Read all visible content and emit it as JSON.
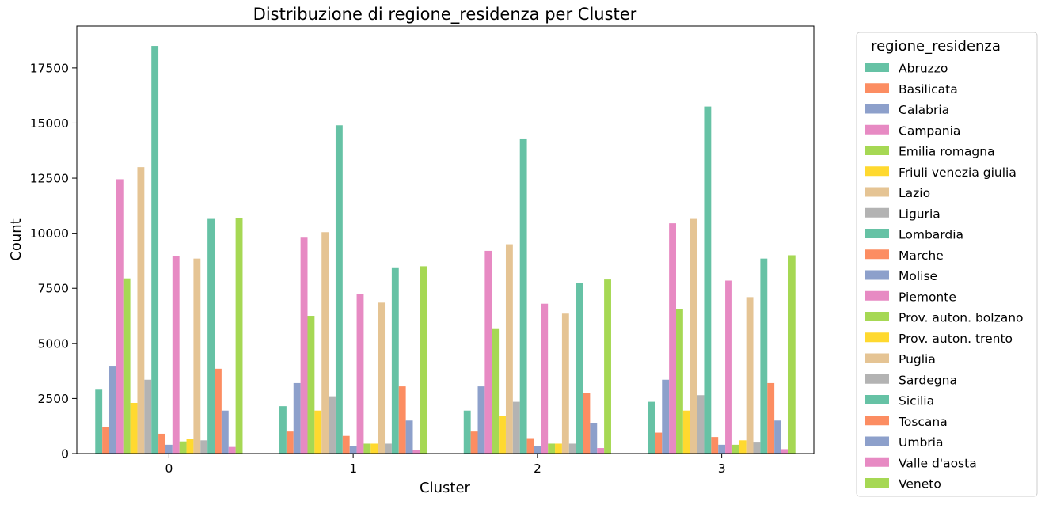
{
  "chart_data": {
    "type": "bar",
    "title": "Distribuzione di regione_residenza per Cluster",
    "xlabel": "Cluster",
    "ylabel": "Count",
    "categories": [
      "0",
      "1",
      "2",
      "3"
    ],
    "ylim": [
      0,
      19400
    ],
    "yticks": [
      0,
      2500,
      5000,
      7500,
      10000,
      12500,
      15000,
      17500
    ],
    "legend_title": "regione_residenza",
    "legend_position": "outside-right",
    "series": [
      {
        "name": "Abruzzo",
        "color": "#66c2a5",
        "values": [
          2900,
          2150,
          1950,
          2350
        ]
      },
      {
        "name": "Basilicata",
        "color": "#fc8d62",
        "values": [
          1200,
          1000,
          1000,
          950
        ]
      },
      {
        "name": "Calabria",
        "color": "#8da0cb",
        "values": [
          3950,
          3200,
          3050,
          3350
        ]
      },
      {
        "name": "Campania",
        "color": "#e78ac3",
        "values": [
          12450,
          9800,
          9200,
          10450
        ]
      },
      {
        "name": "Emilia romagna",
        "color": "#a6d854",
        "values": [
          7950,
          6250,
          5650,
          6550
        ]
      },
      {
        "name": "Friuli venezia giulia",
        "color": "#ffd92f",
        "values": [
          2300,
          1950,
          1700,
          1950
        ]
      },
      {
        "name": "Lazio",
        "color": "#e5c494",
        "values": [
          13000,
          10050,
          9500,
          10650
        ]
      },
      {
        "name": "Liguria",
        "color": "#b3b3b3",
        "values": [
          3350,
          2600,
          2350,
          2650
        ]
      },
      {
        "name": "Lombardia",
        "color": "#66c2a5",
        "values": [
          18500,
          14900,
          14300,
          15750
        ]
      },
      {
        "name": "Marche",
        "color": "#fc8d62",
        "values": [
          900,
          800,
          700,
          750
        ]
      },
      {
        "name": "Molise",
        "color": "#8da0cb",
        "values": [
          400,
          350,
          350,
          400
        ]
      },
      {
        "name": "Piemonte",
        "color": "#e78ac3",
        "values": [
          8950,
          7250,
          6800,
          7850
        ]
      },
      {
        "name": "Prov. auton. bolzano",
        "color": "#a6d854",
        "values": [
          550,
          450,
          450,
          400
        ]
      },
      {
        "name": "Prov. auton. trento",
        "color": "#ffd92f",
        "values": [
          650,
          450,
          450,
          600
        ]
      },
      {
        "name": "Puglia",
        "color": "#e5c494",
        "values": [
          8850,
          6850,
          6350,
          7100
        ]
      },
      {
        "name": "Sardegna",
        "color": "#b3b3b3",
        "values": [
          600,
          450,
          450,
          500
        ]
      },
      {
        "name": "Sicilia",
        "color": "#66c2a5",
        "values": [
          10650,
          8450,
          7750,
          8850
        ]
      },
      {
        "name": "Toscana",
        "color": "#fc8d62",
        "values": [
          3850,
          3050,
          2750,
          3200
        ]
      },
      {
        "name": "Umbria",
        "color": "#8da0cb",
        "values": [
          1950,
          1500,
          1400,
          1500
        ]
      },
      {
        "name": "Valle d'aosta",
        "color": "#e78ac3",
        "values": [
          300,
          150,
          250,
          200
        ]
      },
      {
        "name": "Veneto",
        "color": "#a6d854",
        "values": [
          10700,
          8500,
          7900,
          9000
        ]
      }
    ]
  }
}
